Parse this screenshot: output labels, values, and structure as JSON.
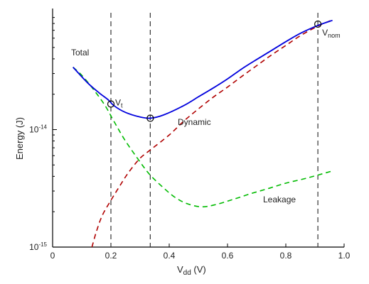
{
  "chart_data": {
    "type": "line",
    "title": "",
    "xlabel": {
      "main": "V",
      "sub": "dd",
      "unit": " (V)"
    },
    "ylabel": "Energy (J)",
    "xlim": [
      0,
      1.0
    ],
    "ylim": [
      1e-15,
      1e-13
    ],
    "yscale": "log",
    "grid": false,
    "x_ticks": [
      {
        "value": 0.0,
        "label": "0"
      },
      {
        "value": 0.2,
        "label": "0.2"
      },
      {
        "value": 0.4,
        "label": "0.4"
      },
      {
        "value": 0.6,
        "label": "0.6"
      },
      {
        "value": 0.8,
        "label": "0.8"
      },
      {
        "value": 1.0,
        "label": "1.0"
      }
    ],
    "y_ticks": [
      {
        "value": 1e-15,
        "base": "10",
        "exp": "-15"
      },
      {
        "value": 1e-14,
        "base": "10",
        "exp": "-14"
      }
    ],
    "series": [
      {
        "name": "Total",
        "color": "#0000dd",
        "style": "solid",
        "points": [
          [
            0.07,
            3.4e-14
          ],
          [
            0.12,
            2.5e-14
          ],
          [
            0.16,
            2.05e-14
          ],
          [
            0.19,
            1.8e-14
          ],
          [
            0.21,
            1.6e-14
          ],
          [
            0.25,
            1.4e-14
          ],
          [
            0.3,
            1.28e-14
          ],
          [
            0.335,
            1.25e-14
          ],
          [
            0.38,
            1.33e-14
          ],
          [
            0.45,
            1.6e-14
          ],
          [
            0.5,
            1.9e-14
          ],
          [
            0.55,
            2.25e-14
          ],
          [
            0.6,
            2.7e-14
          ],
          [
            0.65,
            3.3e-14
          ],
          [
            0.7,
            3.95e-14
          ],
          [
            0.75,
            4.7e-14
          ],
          [
            0.8,
            5.6e-14
          ],
          [
            0.85,
            6.6e-14
          ],
          [
            0.91,
            7.7e-14
          ],
          [
            0.96,
            8.5e-14
          ]
        ]
      },
      {
        "name": "Dynamic",
        "color": "#b00000",
        "style": "dashed",
        "points": [
          [
            0.135,
            1e-15
          ],
          [
            0.15,
            1.35e-15
          ],
          [
            0.17,
            1.85e-15
          ],
          [
            0.2,
            2.5e-15
          ],
          [
            0.23,
            3.3e-15
          ],
          [
            0.26,
            4.3e-15
          ],
          [
            0.3,
            5.7e-15
          ],
          [
            0.335,
            6.7e-15
          ],
          [
            0.4,
            9e-15
          ],
          [
            0.45,
            1.18e-14
          ],
          [
            0.5,
            1.5e-14
          ],
          [
            0.55,
            1.88e-14
          ],
          [
            0.6,
            2.3e-14
          ],
          [
            0.65,
            2.85e-14
          ],
          [
            0.7,
            3.5e-14
          ],
          [
            0.75,
            4.3e-14
          ],
          [
            0.8,
            5.2e-14
          ],
          [
            0.85,
            6.3e-14
          ],
          [
            0.91,
            7.6e-14
          ],
          [
            0.96,
            8.6e-14
          ]
        ]
      },
      {
        "name": "Leakage",
        "color": "#00bb00",
        "style": "dashed",
        "points": [
          [
            0.07,
            3.4e-14
          ],
          [
            0.1,
            2.9e-14
          ],
          [
            0.14,
            2.2e-14
          ],
          [
            0.18,
            1.6e-14
          ],
          [
            0.21,
            1.18e-14
          ],
          [
            0.25,
            8e-15
          ],
          [
            0.3,
            5.3e-15
          ],
          [
            0.335,
            4.1e-15
          ],
          [
            0.38,
            3.2e-15
          ],
          [
            0.42,
            2.65e-15
          ],
          [
            0.46,
            2.35e-15
          ],
          [
            0.51,
            2.2e-15
          ],
          [
            0.56,
            2.3e-15
          ],
          [
            0.62,
            2.55e-15
          ],
          [
            0.68,
            2.85e-15
          ],
          [
            0.74,
            3.15e-15
          ],
          [
            0.8,
            3.5e-15
          ],
          [
            0.86,
            3.8e-15
          ],
          [
            0.91,
            4.1e-15
          ],
          [
            0.96,
            4.45e-15
          ]
        ]
      }
    ],
    "vlines": [
      0.2,
      0.335,
      0.91
    ],
    "markers": [
      {
        "x": 0.2,
        "y": 1.65e-14,
        "label_main": "V",
        "label_sub": "t"
      },
      {
        "x": 0.335,
        "y": 1.25e-14,
        "label_main": "",
        "label_sub": ""
      },
      {
        "x": 0.91,
        "y": 7.9e-14,
        "label_main": "V",
        "label_sub": "nom"
      }
    ],
    "annotations": [
      {
        "text": "Total",
        "series": "Total"
      },
      {
        "text": "Dynamic",
        "series": "Dynamic"
      },
      {
        "text": "Leakage",
        "series": "Leakage"
      }
    ]
  }
}
